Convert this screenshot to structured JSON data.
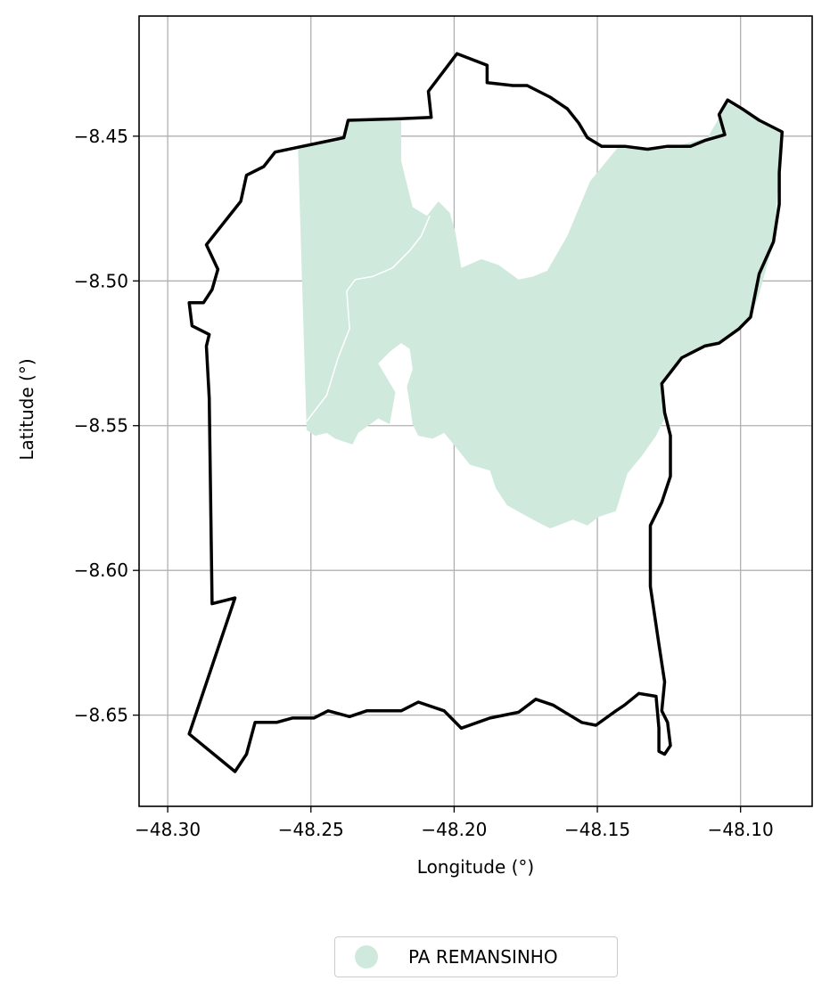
{
  "chart_data": {
    "type": "map",
    "xlabel": "Longitude (°)",
    "ylabel": "Latitude (°)",
    "xlim": [
      -48.31,
      -48.075
    ],
    "ylim": [
      -8.6815,
      -8.4085
    ],
    "x_ticks": [
      -48.3,
      -48.25,
      -48.2,
      -48.15,
      -48.1
    ],
    "y_ticks": [
      -8.45,
      -8.5,
      -8.55,
      -8.6,
      -8.65
    ],
    "x_tick_labels": [
      "−48.30",
      "−48.25",
      "−48.20",
      "−48.15",
      "−48.10"
    ],
    "y_tick_labels": [
      "−8.45",
      "−8.50",
      "−8.55",
      "−8.60",
      "−8.65"
    ],
    "grid": true,
    "legend_position": "bottom-center",
    "boundary": {
      "color": "#000000",
      "coords": [
        [
          -48.199,
          -8.4215
        ],
        [
          -48.209,
          -8.4345
        ],
        [
          -48.208,
          -8.4435
        ],
        [
          -48.219,
          -8.444
        ],
        [
          -48.237,
          -8.4445
        ],
        [
          -48.2385,
          -8.4505
        ],
        [
          -48.2625,
          -8.4555
        ],
        [
          -48.2665,
          -8.4605
        ],
        [
          -48.2725,
          -8.4635
        ],
        [
          -48.2745,
          -8.4725
        ],
        [
          -48.2865,
          -8.4875
        ],
        [
          -48.2825,
          -8.496
        ],
        [
          -48.2845,
          -8.503
        ],
        [
          -48.2875,
          -8.5075
        ],
        [
          -48.2925,
          -8.5075
        ],
        [
          -48.2915,
          -8.5155
        ],
        [
          -48.2855,
          -8.5185
        ],
        [
          -48.2865,
          -8.5225
        ],
        [
          -48.2855,
          -8.5405
        ],
        [
          -48.2845,
          -8.6115
        ],
        [
          -48.2765,
          -8.6095
        ],
        [
          -48.2925,
          -8.6565
        ],
        [
          -48.2765,
          -8.6695
        ],
        [
          -48.2725,
          -8.6635
        ],
        [
          -48.2695,
          -8.6525
        ],
        [
          -48.262,
          -8.6525
        ],
        [
          -48.2565,
          -8.651
        ],
        [
          -48.249,
          -8.651
        ],
        [
          -48.244,
          -8.6485
        ],
        [
          -48.2365,
          -8.6505
        ],
        [
          -48.2305,
          -8.6485
        ],
        [
          -48.2185,
          -8.6485
        ],
        [
          -48.2125,
          -8.6455
        ],
        [
          -48.2035,
          -8.6485
        ],
        [
          -48.1975,
          -8.6545
        ],
        [
          -48.1875,
          -8.651
        ],
        [
          -48.1775,
          -8.649
        ],
        [
          -48.1715,
          -8.6445
        ],
        [
          -48.1655,
          -8.6465
        ],
        [
          -48.1555,
          -8.6525
        ],
        [
          -48.1505,
          -8.6535
        ],
        [
          -48.1435,
          -8.6485
        ],
        [
          -48.1405,
          -8.6465
        ],
        [
          -48.1355,
          -8.6425
        ],
        [
          -48.1295,
          -8.6435
        ],
        [
          -48.1285,
          -8.6545
        ],
        [
          -48.1285,
          -8.6625
        ],
        [
          -48.1265,
          -8.6635
        ],
        [
          -48.1245,
          -8.6605
        ],
        [
          -48.1255,
          -8.6525
        ],
        [
          -48.1275,
          -8.6485
        ],
        [
          -48.1265,
          -8.6385
        ],
        [
          -48.1285,
          -8.6255
        ],
        [
          -48.1315,
          -8.6055
        ],
        [
          -48.1315,
          -8.5845
        ],
        [
          -48.1275,
          -8.5765
        ],
        [
          -48.1245,
          -8.5675
        ],
        [
          -48.1245,
          -8.5535
        ],
        [
          -48.1265,
          -8.5455
        ],
        [
          -48.1275,
          -8.5355
        ],
        [
          -48.1205,
          -8.5265
        ],
        [
          -48.1125,
          -8.5225
        ],
        [
          -48.1075,
          -8.5215
        ],
        [
          -48.1005,
          -8.5165
        ],
        [
          -48.0965,
          -8.5125
        ],
        [
          -48.0935,
          -8.4975
        ],
        [
          -48.0885,
          -8.4865
        ],
        [
          -48.0865,
          -8.4735
        ],
        [
          -48.0865,
          -8.4625
        ],
        [
          -48.0855,
          -8.4485
        ],
        [
          -48.0935,
          -8.4445
        ],
        [
          -48.0995,
          -8.4405
        ],
        [
          -48.1045,
          -8.4375
        ],
        [
          -48.1075,
          -8.4425
        ],
        [
          -48.1055,
          -8.4495
        ],
        [
          -48.1125,
          -8.4515
        ],
        [
          -48.1175,
          -8.4535
        ],
        [
          -48.1255,
          -8.4535
        ],
        [
          -48.1325,
          -8.4545
        ],
        [
          -48.1405,
          -8.4535
        ],
        [
          -48.1485,
          -8.4535
        ],
        [
          -48.1535,
          -8.4505
        ],
        [
          -48.1565,
          -8.4455
        ],
        [
          -48.1605,
          -8.4405
        ],
        [
          -48.1665,
          -8.4365
        ],
        [
          -48.1745,
          -8.4325
        ],
        [
          -48.1795,
          -8.4325
        ],
        [
          -48.1885,
          -8.4315
        ],
        [
          -48.1885,
          -8.4255
        ],
        [
          -48.199,
          -8.4215
        ]
      ]
    },
    "series": [
      {
        "name": "PA REMANSINHO",
        "color": "#cfeadd",
        "polygon": [
          [
            -48.2545,
            -8.4545
          ],
          [
            -48.2385,
            -8.4505
          ],
          [
            -48.237,
            -8.4445
          ],
          [
            -48.2185,
            -8.4435
          ],
          [
            -48.2185,
            -8.4585
          ],
          [
            -48.2145,
            -8.4745
          ],
          [
            -48.2095,
            -8.4775
          ],
          [
            -48.2055,
            -8.4725
          ],
          [
            -48.2015,
            -8.4765
          ],
          [
            -48.1995,
            -8.4835
          ],
          [
            -48.1975,
            -8.4955
          ],
          [
            -48.1905,
            -8.4925
          ],
          [
            -48.1845,
            -8.4945
          ],
          [
            -48.1775,
            -8.4995
          ],
          [
            -48.1725,
            -8.4985
          ],
          [
            -48.1675,
            -8.4965
          ],
          [
            -48.1605,
            -8.4845
          ],
          [
            -48.1525,
            -8.4655
          ],
          [
            -48.1425,
            -8.4535
          ],
          [
            -48.1265,
            -8.4545
          ],
          [
            -48.1115,
            -8.4505
          ],
          [
            -48.1045,
            -8.4385
          ],
          [
            -48.0935,
            -8.4445
          ],
          [
            -48.0855,
            -8.4485
          ],
          [
            -48.0865,
            -8.4625
          ],
          [
            -48.0885,
            -8.4865
          ],
          [
            -48.0935,
            -8.5045
          ],
          [
            -48.0965,
            -8.5125
          ],
          [
            -48.1065,
            -8.5205
          ],
          [
            -48.1205,
            -8.5255
          ],
          [
            -48.1275,
            -8.5355
          ],
          [
            -48.1265,
            -8.5475
          ],
          [
            -48.1295,
            -8.5535
          ],
          [
            -48.1345,
            -8.5605
          ],
          [
            -48.1395,
            -8.5665
          ],
          [
            -48.1435,
            -8.5795
          ],
          [
            -48.1495,
            -8.5815
          ],
          [
            -48.1535,
            -8.5845
          ],
          [
            -48.1585,
            -8.5825
          ],
          [
            -48.1665,
            -8.5855
          ],
          [
            -48.1725,
            -8.5825
          ],
          [
            -48.1815,
            -8.5775
          ],
          [
            -48.1855,
            -8.5715
          ],
          [
            -48.1875,
            -8.5655
          ],
          [
            -48.1945,
            -8.5635
          ],
          [
            -48.1985,
            -8.5585
          ],
          [
            -48.2035,
            -8.5525
          ],
          [
            -48.2075,
            -8.5545
          ],
          [
            -48.2125,
            -8.5535
          ],
          [
            -48.2145,
            -8.5495
          ],
          [
            -48.2155,
            -8.5425
          ],
          [
            -48.2165,
            -8.5365
          ],
          [
            -48.2145,
            -8.5305
          ],
          [
            -48.2155,
            -8.5235
          ],
          [
            -48.2185,
            -8.5215
          ],
          [
            -48.2225,
            -8.5245
          ],
          [
            -48.2265,
            -8.5285
          ],
          [
            -48.2205,
            -8.5385
          ],
          [
            -48.2225,
            -8.5495
          ],
          [
            -48.2265,
            -8.5475
          ],
          [
            -48.2335,
            -8.5525
          ],
          [
            -48.2355,
            -8.5565
          ],
          [
            -48.2415,
            -8.5545
          ],
          [
            -48.2445,
            -8.5525
          ],
          [
            -48.2485,
            -8.5535
          ],
          [
            -48.2515,
            -8.5515
          ],
          [
            -48.2545,
            -8.4545
          ]
        ]
      }
    ],
    "internal_line": {
      "color": "#ffffff",
      "coords": [
        [
          -48.2515,
          -8.5485
        ],
        [
          -48.2445,
          -8.5395
        ],
        [
          -48.2405,
          -8.5265
        ],
        [
          -48.2365,
          -8.5165
        ],
        [
          -48.2375,
          -8.5035
        ],
        [
          -48.2345,
          -8.4995
        ],
        [
          -48.2285,
          -8.4985
        ],
        [
          -48.2215,
          -8.4955
        ],
        [
          -48.2155,
          -8.4895
        ],
        [
          -48.2115,
          -8.4845
        ],
        [
          -48.2085,
          -8.4775
        ]
      ]
    }
  },
  "legend": {
    "label": "PA REMANSINHO",
    "marker_color": "#cfeadd"
  }
}
